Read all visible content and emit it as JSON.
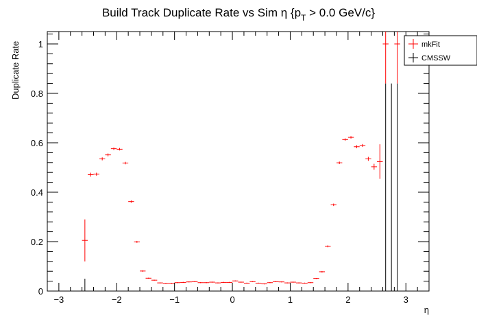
{
  "chart_data": {
    "type": "scatter",
    "title": "Build Track Duplicate Rate vs Sim η {p",
    "title_sub": "T",
    "title_tail": " > 0.0 GeV/c}",
    "xlabel": "η",
    "ylabel": "Duplicate Rate",
    "xlim": [
      -3.2,
      3.4
    ],
    "ylim": [
      0,
      1.05
    ],
    "x_ticks": [
      -3,
      -2,
      -1,
      0,
      1,
      2,
      3
    ],
    "x_tick_labels": [
      "−3",
      "−2",
      "−1",
      "0",
      "1",
      "2",
      "3"
    ],
    "y_ticks": [
      0,
      0.2,
      0.4,
      0.6,
      0.8,
      1
    ],
    "y_tick_labels": [
      "0",
      "0.2",
      "0.4",
      "0.6",
      "0.8",
      "1"
    ],
    "bin_half_width": 0.05,
    "legend_position": "top-right",
    "grid": false,
    "series": [
      {
        "name": "mkFit",
        "color": "#ff0000",
        "points": [
          {
            "x": -2.55,
            "y": 0.205,
            "err": 0.085
          },
          {
            "x": -2.45,
            "y": 0.471,
            "err": 0.008
          },
          {
            "x": -2.35,
            "y": 0.473,
            "err": 0.006
          },
          {
            "x": -2.25,
            "y": 0.535,
            "err": 0.006
          },
          {
            "x": -2.15,
            "y": 0.551,
            "err": 0.006
          },
          {
            "x": -2.05,
            "y": 0.576,
            "err": 0.005
          },
          {
            "x": -1.95,
            "y": 0.574,
            "err": 0.005
          },
          {
            "x": -1.85,
            "y": 0.518,
            "err": 0.005
          },
          {
            "x": -1.75,
            "y": 0.362,
            "err": 0.005
          },
          {
            "x": -1.65,
            "y": 0.199,
            "err": 0.004
          },
          {
            "x": -1.55,
            "y": 0.081,
            "err": 0.003
          },
          {
            "x": -1.45,
            "y": 0.052,
            "err": 0.002
          },
          {
            "x": -1.35,
            "y": 0.044,
            "err": 0.002
          },
          {
            "x": -1.25,
            "y": 0.033,
            "err": 0.002
          },
          {
            "x": -1.15,
            "y": 0.031,
            "err": 0.002
          },
          {
            "x": -1.05,
            "y": 0.031,
            "err": 0.002
          },
          {
            "x": -0.95,
            "y": 0.034,
            "err": 0.002
          },
          {
            "x": -0.85,
            "y": 0.035,
            "err": 0.002
          },
          {
            "x": -0.75,
            "y": 0.037,
            "err": 0.002
          },
          {
            "x": -0.65,
            "y": 0.038,
            "err": 0.002
          },
          {
            "x": -0.55,
            "y": 0.034,
            "err": 0.002
          },
          {
            "x": -0.45,
            "y": 0.034,
            "err": 0.002
          },
          {
            "x": -0.35,
            "y": 0.036,
            "err": 0.002
          },
          {
            "x": -0.25,
            "y": 0.033,
            "err": 0.002
          },
          {
            "x": -0.15,
            "y": 0.035,
            "err": 0.002
          },
          {
            "x": -0.05,
            "y": 0.035,
            "err": 0.002
          },
          {
            "x": 0.05,
            "y": 0.041,
            "err": 0.002
          },
          {
            "x": 0.15,
            "y": 0.036,
            "err": 0.002
          },
          {
            "x": 0.25,
            "y": 0.032,
            "err": 0.002
          },
          {
            "x": 0.35,
            "y": 0.038,
            "err": 0.002
          },
          {
            "x": 0.45,
            "y": 0.032,
            "err": 0.002
          },
          {
            "x": 0.55,
            "y": 0.029,
            "err": 0.002
          },
          {
            "x": 0.65,
            "y": 0.034,
            "err": 0.002
          },
          {
            "x": 0.75,
            "y": 0.038,
            "err": 0.002
          },
          {
            "x": 0.85,
            "y": 0.037,
            "err": 0.002
          },
          {
            "x": 0.95,
            "y": 0.033,
            "err": 0.002
          },
          {
            "x": 1.05,
            "y": 0.036,
            "err": 0.002
          },
          {
            "x": 1.15,
            "y": 0.033,
            "err": 0.002
          },
          {
            "x": 1.25,
            "y": 0.032,
            "err": 0.002
          },
          {
            "x": 1.35,
            "y": 0.034,
            "err": 0.002
          },
          {
            "x": 1.45,
            "y": 0.051,
            "err": 0.002
          },
          {
            "x": 1.55,
            "y": 0.078,
            "err": 0.003
          },
          {
            "x": 1.65,
            "y": 0.181,
            "err": 0.004
          },
          {
            "x": 1.75,
            "y": 0.349,
            "err": 0.005
          },
          {
            "x": 1.85,
            "y": 0.519,
            "err": 0.005
          },
          {
            "x": 1.95,
            "y": 0.613,
            "err": 0.005
          },
          {
            "x": 2.05,
            "y": 0.622,
            "err": 0.005
          },
          {
            "x": 2.15,
            "y": 0.584,
            "err": 0.006
          },
          {
            "x": 2.25,
            "y": 0.589,
            "err": 0.006
          },
          {
            "x": 2.35,
            "y": 0.535,
            "err": 0.008
          },
          {
            "x": 2.45,
            "y": 0.503,
            "err": 0.012
          },
          {
            "x": 2.55,
            "y": 0.524,
            "err": 0.07
          },
          {
            "x": 2.65,
            "y": 1.0,
            "err": 0.16
          },
          {
            "x": 2.85,
            "y": 1.0,
            "err": 0.16
          }
        ]
      },
      {
        "name": "CMSSW",
        "color": "#000000",
        "points": [
          {
            "x": -2.55,
            "y": 0.0,
            "err": 0.05
          },
          {
            "x": 2.65,
            "y": 0.0,
            "err": 0.84
          },
          {
            "x": 2.75,
            "y": 0.0,
            "err": 0.84
          },
          {
            "x": 2.85,
            "y": 0.0,
            "err": 0.84
          }
        ]
      }
    ]
  }
}
